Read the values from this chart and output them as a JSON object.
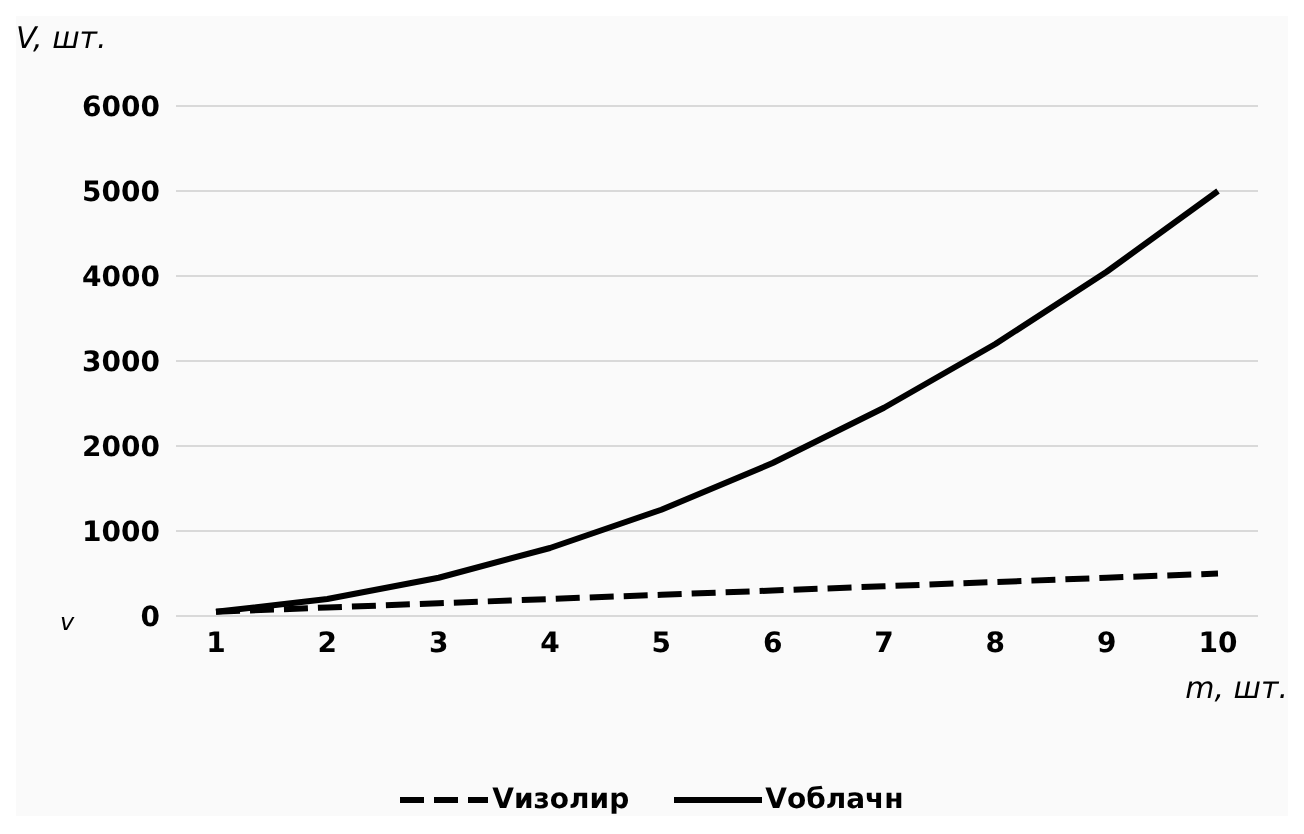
{
  "chart_data": {
    "type": "line",
    "ylabel": "V, шт.",
    "xlabel": "m, шт.",
    "annotations": [
      "v"
    ],
    "categories": [
      "1",
      "2",
      "3",
      "4",
      "5",
      "6",
      "7",
      "8",
      "9",
      "10"
    ],
    "series": [
      {
        "name": "Vизолир",
        "color": "#000000",
        "line_style": "dashed",
        "values": [
          50,
          100,
          150,
          200,
          250,
          300,
          350,
          400,
          450,
          500
        ]
      },
      {
        "name": "Vоблачн",
        "color": "#000000",
        "line_style": "solid",
        "values": [
          50,
          200,
          450,
          800,
          1250,
          1800,
          2450,
          3200,
          4050,
          5000
        ]
      }
    ],
    "ylim": [
      0,
      6000
    ],
    "yticks": [
      0,
      1000,
      2000,
      3000,
      4000,
      5000,
      6000
    ],
    "grid": "y",
    "legend": "bottom",
    "marker": "none"
  }
}
